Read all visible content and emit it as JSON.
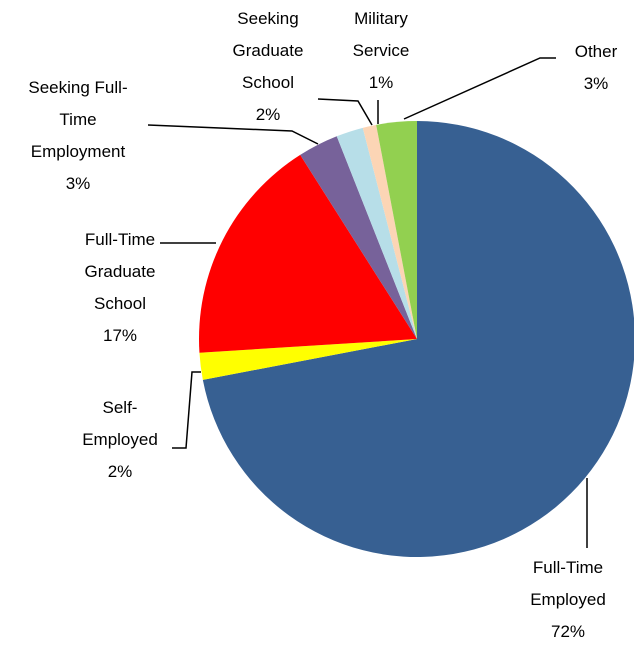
{
  "chart_data": {
    "type": "pie",
    "categories": [
      "Full-Time Employed",
      "Self-Employed",
      "Full-Time Graduate School",
      "Seeking Full-Time Employment",
      "Seeking Graduate School",
      "Military Service",
      "Other"
    ],
    "values": [
      72,
      2,
      17,
      3,
      2,
      1,
      3
    ],
    "value_labels": [
      "72%",
      "2%",
      "17%",
      "3%",
      "2%",
      "1%",
      "3%"
    ],
    "colors": [
      "#376092",
      "#ffff00",
      "#ff0000",
      "#77629a",
      "#b7dee8",
      "#fcd5b5",
      "#92d050"
    ]
  }
}
